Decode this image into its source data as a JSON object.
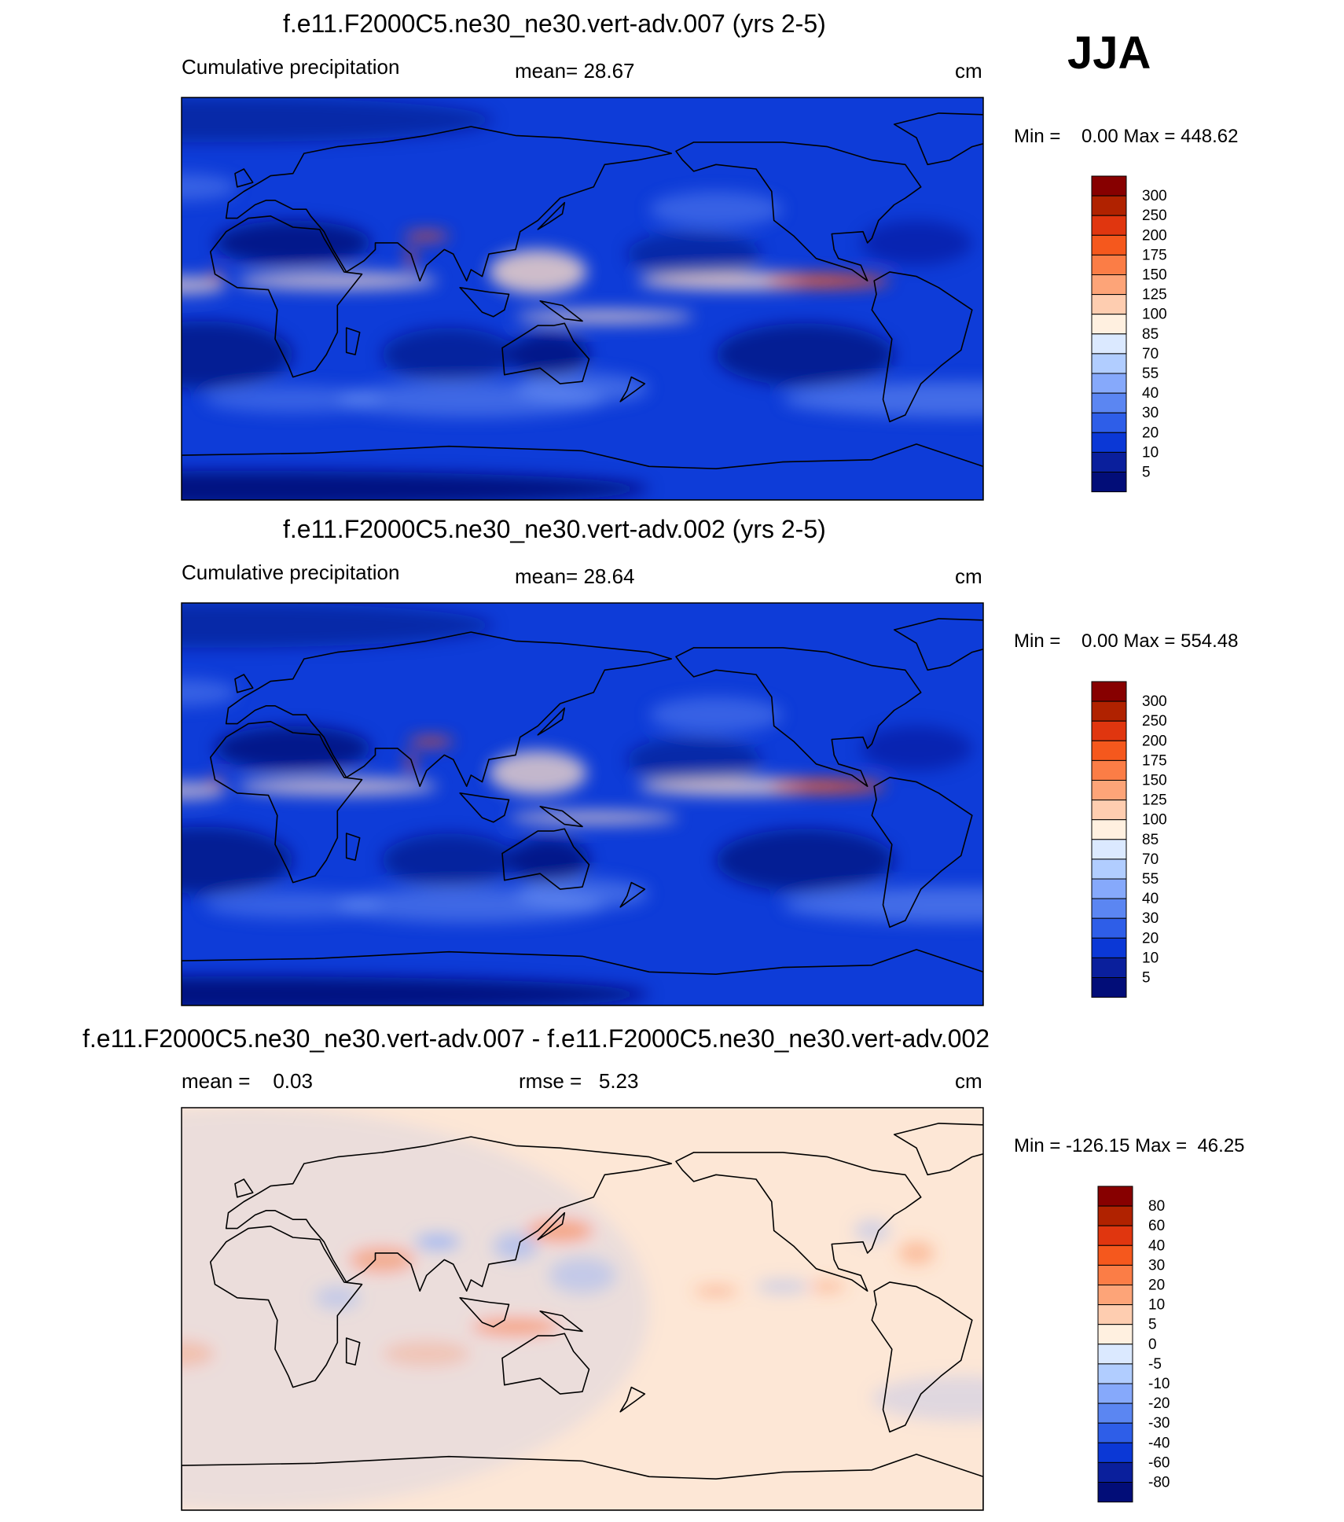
{
  "season": "JJA",
  "chart_data": [
    {
      "type": "heatmap",
      "title": "f.e11.F2000C5.ne30_ne30.vert-adv.007 (yrs 2-5)",
      "left_label": "Cumulative precipitation",
      "stat_label": "mean=  28.67",
      "units": "cm",
      "minmax": "Min =    0.00 Max = 448.62",
      "min": 0.0,
      "max": 448.62,
      "mean": 28.67,
      "levels": [
        "300",
        "250",
        "200",
        "175",
        "150",
        "125",
        "100",
        "85",
        "70",
        "55",
        "40",
        "30",
        "20",
        "10",
        "5"
      ],
      "colors": [
        "#870000",
        "#b02200",
        "#e0360f",
        "#f5581d",
        "#fb7d46",
        "#fda478",
        "#fecdb0",
        "#fff0e0",
        "#dbe9ff",
        "#b1cdff",
        "#86a9fb",
        "#5b86f2",
        "#2e5ee8",
        "#0b38d6",
        "#0a1f9c",
        "#020d78"
      ],
      "features": {
        "base": "#0e3cd8",
        "hot": [
          [
            -100,
            8,
            28,
            3,
            0.9
          ],
          [
            80,
            28,
            10,
            2,
            0.85
          ],
          [
            73,
            18,
            2,
            5,
            0.8
          ],
          [
            -15,
            10,
            4,
            2,
            0.7
          ]
        ],
        "warm": [
          [
            -140,
            8,
            45,
            4,
            0.65
          ],
          [
            160,
            -8,
            40,
            3,
            0.55
          ],
          [
            130,
            12,
            22,
            10,
            0.6
          ],
          [
            40,
            8,
            45,
            4,
            0.5
          ],
          [
            -30,
            6,
            20,
            4,
            0.5
          ]
        ],
        "mid": [
          [
            -40,
            -45,
            80,
            8,
            0.45
          ],
          [
            100,
            -45,
            60,
            8,
            0.4
          ],
          [
            -150,
            40,
            30,
            8,
            0.35
          ],
          [
            -30,
            50,
            25,
            6,
            0.35
          ],
          [
            20,
            -45,
            40,
            6,
            0.35
          ],
          [
            150,
            -40,
            30,
            7,
            0.4
          ]
        ],
        "dry": [
          [
            -110,
            -25,
            40,
            14,
            0.7
          ],
          [
            -20,
            -25,
            40,
            15,
            0.7
          ],
          [
            90,
            -25,
            30,
            12,
            0.6
          ],
          [
            135,
            -25,
            18,
            10,
            0.8
          ],
          [
            20,
            25,
            35,
            10,
            0.8
          ],
          [
            -160,
            20,
            30,
            10,
            0.5
          ],
          [
            -60,
            25,
            25,
            10,
            0.4
          ],
          [
            0,
            -85,
            180,
            8,
            0.9
          ],
          [
            -10,
            80,
            120,
            10,
            0.5
          ]
        ]
      }
    },
    {
      "type": "heatmap",
      "title": "f.e11.F2000C5.ne30_ne30.vert-adv.002 (yrs 2-5)",
      "left_label": "Cumulative precipitation",
      "stat_label": "mean=  28.64",
      "units": "cm",
      "minmax": "Min =    0.00 Max = 554.48",
      "min": 0.0,
      "max": 554.48,
      "mean": 28.64,
      "levels": [
        "300",
        "250",
        "200",
        "175",
        "150",
        "125",
        "100",
        "85",
        "70",
        "55",
        "40",
        "30",
        "20",
        "10",
        "5"
      ],
      "colors": [
        "#870000",
        "#b02200",
        "#e0360f",
        "#f5581d",
        "#fb7d46",
        "#fda478",
        "#fecdb0",
        "#fff0e0",
        "#dbe9ff",
        "#b1cdff",
        "#86a9fb",
        "#5b86f2",
        "#2e5ee8",
        "#0b38d6",
        "#0a1f9c",
        "#020d78"
      ],
      "features": {
        "base": "#0e3cd8",
        "hot": [
          [
            -100,
            8,
            26,
            3,
            0.9
          ],
          [
            82,
            28,
            10,
            2,
            0.85
          ],
          [
            73,
            18,
            2,
            5,
            0.8
          ],
          [
            -15,
            10,
            4,
            2,
            0.7
          ]
        ],
        "warm": [
          [
            -140,
            8,
            45,
            4,
            0.6
          ],
          [
            155,
            -6,
            38,
            3,
            0.5
          ],
          [
            130,
            14,
            22,
            10,
            0.55
          ],
          [
            40,
            8,
            45,
            4,
            0.5
          ],
          [
            -30,
            6,
            20,
            4,
            0.45
          ]
        ],
        "mid": [
          [
            -40,
            -45,
            80,
            8,
            0.45
          ],
          [
            100,
            -45,
            60,
            8,
            0.4
          ],
          [
            -150,
            40,
            30,
            8,
            0.35
          ],
          [
            -30,
            50,
            25,
            6,
            0.35
          ],
          [
            20,
            -45,
            40,
            6,
            0.35
          ],
          [
            150,
            -40,
            30,
            7,
            0.4
          ]
        ],
        "dry": [
          [
            -110,
            -25,
            40,
            14,
            0.7
          ],
          [
            -20,
            -25,
            40,
            15,
            0.7
          ],
          [
            90,
            -25,
            30,
            12,
            0.6
          ],
          [
            135,
            -25,
            18,
            10,
            0.8
          ],
          [
            20,
            25,
            35,
            10,
            0.8
          ],
          [
            -160,
            20,
            30,
            10,
            0.5
          ],
          [
            -60,
            25,
            25,
            10,
            0.4
          ],
          [
            0,
            -85,
            180,
            8,
            0.9
          ],
          [
            -10,
            80,
            120,
            10,
            0.5
          ]
        ]
      }
    },
    {
      "type": "heatmap",
      "title": "f.e11.F2000C5.ne30_ne30.vert-adv.007 - f.e11.F2000C5.ne30_ne30.vert-adv.002",
      "left_label": "mean =    0.03",
      "stat_label": "rmse =   5.23",
      "units": "cm",
      "minmax": "Min = -126.15 Max =  46.25",
      "min": -126.15,
      "max": 46.25,
      "mean": 0.03,
      "rmse": 5.23,
      "levels": [
        "80",
        "60",
        "40",
        "30",
        "20",
        "10",
        "5",
        "0",
        "-5",
        "-10",
        "-20",
        "-30",
        "-40",
        "-60",
        "-80"
      ],
      "colors": [
        "#870000",
        "#b02200",
        "#e0360f",
        "#f5581d",
        "#fb7d46",
        "#fda478",
        "#fecdb0",
        "#fff0e0",
        "#dbe9ff",
        "#b1cdff",
        "#86a9fb",
        "#5b86f2",
        "#2e5ee8",
        "#0b38d6",
        "#0a1f9c",
        "#020d78"
      ],
      "features": {
        "base": "#fde7d6",
        "pos": [
          [
            140,
            35,
            15,
            5,
            0.6
          ],
          [
            120,
            -8,
            20,
            4,
            0.6
          ],
          [
            60,
            22,
            15,
            6,
            0.5
          ],
          [
            -150,
            8,
            10,
            2,
            0.5
          ],
          [
            -100,
            10,
            8,
            2,
            0.5
          ],
          [
            -60,
            25,
            8,
            5,
            0.4
          ],
          [
            -30,
            -20,
            15,
            6,
            0.3
          ],
          [
            80,
            -20,
            20,
            6,
            0.25
          ]
        ],
        "neg": [
          [
            85,
            30,
            10,
            3,
            0.8
          ],
          [
            120,
            28,
            10,
            6,
            0.5
          ],
          [
            -120,
            10,
            12,
            3,
            0.4
          ],
          [
            -80,
            35,
            8,
            5,
            0.35
          ],
          [
            -40,
            -40,
            40,
            10,
            0.25
          ],
          [
            0,
            0,
            180,
            90,
            0.15
          ],
          [
            150,
            15,
            15,
            8,
            0.4
          ],
          [
            40,
            5,
            10,
            5,
            0.4
          ]
        ]
      }
    }
  ]
}
